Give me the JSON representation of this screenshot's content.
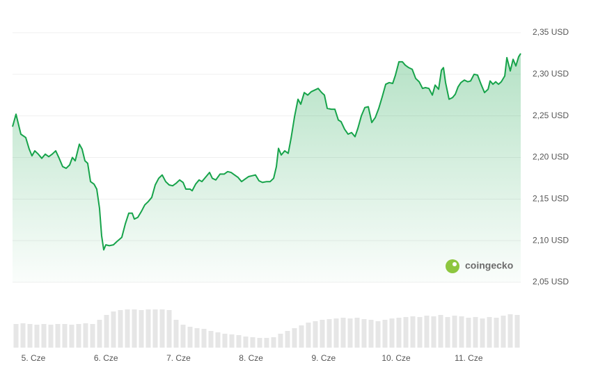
{
  "chart_data": [
    {
      "type": "line",
      "x": [
        4.712,
        4.76,
        4.827,
        4.894,
        4.942,
        4.98,
        5.019,
        5.067,
        5.115,
        5.163,
        5.211,
        5.259,
        5.307,
        5.355,
        5.403,
        5.451,
        5.499,
        5.537,
        5.576,
        5.633,
        5.671,
        5.71,
        5.748,
        5.787,
        5.835,
        5.873,
        5.911,
        5.94,
        5.969,
        5.998,
        6.046,
        6.103,
        6.151,
        6.218,
        6.266,
        6.314,
        6.362,
        6.391,
        6.439,
        6.487,
        6.535,
        6.583,
        6.631,
        6.679,
        6.727,
        6.775,
        6.823,
        6.871,
        6.919,
        6.967,
        7.015,
        7.063,
        7.101,
        7.159,
        7.188,
        7.236,
        7.284,
        7.322,
        7.38,
        7.428,
        7.466,
        7.514,
        7.572,
        7.629,
        7.677,
        7.725,
        7.773,
        7.821,
        7.869,
        7.917,
        7.965,
        8.013,
        8.061,
        8.109,
        8.157,
        8.215,
        8.263,
        8.311,
        8.349,
        8.378,
        8.416,
        8.464,
        8.512,
        8.551,
        8.599,
        8.647,
        8.685,
        8.733,
        8.781,
        8.829,
        8.877,
        8.925,
        8.973,
        9.011,
        9.05,
        9.107,
        9.155,
        9.203,
        9.241,
        9.289,
        9.337,
        9.385,
        9.433,
        9.472,
        9.52,
        9.568,
        9.616,
        9.664,
        9.712,
        9.76,
        9.808,
        9.856,
        9.904,
        9.952,
        9.99,
        10.038,
        10.086,
        10.125,
        10.173,
        10.221,
        10.269,
        10.317,
        10.364,
        10.403,
        10.451,
        10.499,
        10.537,
        10.585,
        10.624,
        10.652,
        10.681,
        10.729,
        10.777,
        10.815,
        10.854,
        10.892,
        10.94,
        10.988,
        11.026,
        11.074,
        11.122,
        11.17,
        11.218,
        11.267,
        11.295,
        11.334,
        11.372,
        11.41,
        11.449,
        11.497,
        11.526,
        11.573,
        11.612,
        11.65,
        11.688,
        11.717
      ],
      "series": [
        {
          "color": "#16a34a",
          "values": [
            2.237,
            2.252,
            2.228,
            2.224,
            2.21,
            2.202,
            2.208,
            2.204,
            2.199,
            2.204,
            2.201,
            2.204,
            2.208,
            2.199,
            2.189,
            2.187,
            2.191,
            2.2,
            2.196,
            2.216,
            2.21,
            2.196,
            2.193,
            2.171,
            2.168,
            2.162,
            2.139,
            2.106,
            2.089,
            2.095,
            2.094,
            2.095,
            2.099,
            2.104,
            2.12,
            2.133,
            2.133,
            2.126,
            2.128,
            2.135,
            2.143,
            2.147,
            2.152,
            2.167,
            2.175,
            2.179,
            2.171,
            2.167,
            2.166,
            2.169,
            2.173,
            2.17,
            2.162,
            2.162,
            2.16,
            2.168,
            2.173,
            2.171,
            2.177,
            2.182,
            2.175,
            2.173,
            2.18,
            2.18,
            2.183,
            2.182,
            2.179,
            2.176,
            2.171,
            2.174,
            2.177,
            2.178,
            2.179,
            2.172,
            2.17,
            2.171,
            2.171,
            2.175,
            2.189,
            2.211,
            2.203,
            2.208,
            2.205,
            2.223,
            2.249,
            2.27,
            2.264,
            2.278,
            2.275,
            2.279,
            2.281,
            2.283,
            2.278,
            2.275,
            2.259,
            2.258,
            2.258,
            2.245,
            2.243,
            2.234,
            2.228,
            2.23,
            2.225,
            2.235,
            2.25,
            2.26,
            2.261,
            2.242,
            2.248,
            2.259,
            2.273,
            2.288,
            2.29,
            2.289,
            2.299,
            2.315,
            2.315,
            2.311,
            2.308,
            2.306,
            2.295,
            2.291,
            2.283,
            2.284,
            2.283,
            2.275,
            2.287,
            2.282,
            2.305,
            2.308,
            2.29,
            2.27,
            2.272,
            2.276,
            2.285,
            2.29,
            2.293,
            2.291,
            2.292,
            2.3,
            2.299,
            2.288,
            2.278,
            2.282,
            2.292,
            2.288,
            2.291,
            2.288,
            2.291,
            2.298,
            2.32,
            2.304,
            2.318,
            2.31,
            2.321,
            2.325
          ]
        }
      ],
      "xlim": [
        4.712,
        11.717
      ],
      "ylim": [
        2.05,
        2.35
      ],
      "xticks": [
        {
          "value": 5,
          "label": "5. Cze"
        },
        {
          "value": 6,
          "label": "6. Cze"
        },
        {
          "value": 7,
          "label": "7. Cze"
        },
        {
          "value": 8,
          "label": "8. Cze"
        },
        {
          "value": 9,
          "label": "9. Cze"
        },
        {
          "value": 10,
          "label": "10. Cze"
        },
        {
          "value": 11,
          "label": "11. Cze"
        }
      ],
      "yticks": [
        {
          "value": 2.05,
          "label": "2,05 USD"
        },
        {
          "value": 2.1,
          "label": "2,10 USD"
        },
        {
          "value": 2.15,
          "label": "2,15 USD"
        },
        {
          "value": 2.2,
          "label": "2,20 USD"
        },
        {
          "value": 2.25,
          "label": "2,25 USD"
        },
        {
          "value": 2.3,
          "label": "2,30 USD"
        },
        {
          "value": 2.35,
          "label": "2,35 USD"
        }
      ],
      "grid": true
    },
    {
      "type": "bar",
      "color": "#e6e6e6",
      "ylim": [
        0,
        70
      ],
      "values": [
        34,
        35,
        34,
        33,
        34,
        33,
        34,
        34,
        33,
        34,
        35,
        34,
        40,
        47,
        52,
        54,
        55,
        55,
        54,
        55,
        55,
        55,
        54,
        40,
        33,
        30,
        28,
        27,
        24,
        22,
        20,
        19,
        18,
        16,
        15,
        14,
        14,
        15,
        20,
        24,
        28,
        32,
        36,
        38,
        40,
        41,
        42,
        43,
        42,
        43,
        41,
        40,
        38,
        40,
        42,
        43,
        44,
        45,
        44,
        46,
        45,
        47,
        44,
        46,
        45,
        43,
        44,
        42,
        44,
        43,
        46,
        48,
        47
      ]
    }
  ],
  "watermark": "coingecko"
}
